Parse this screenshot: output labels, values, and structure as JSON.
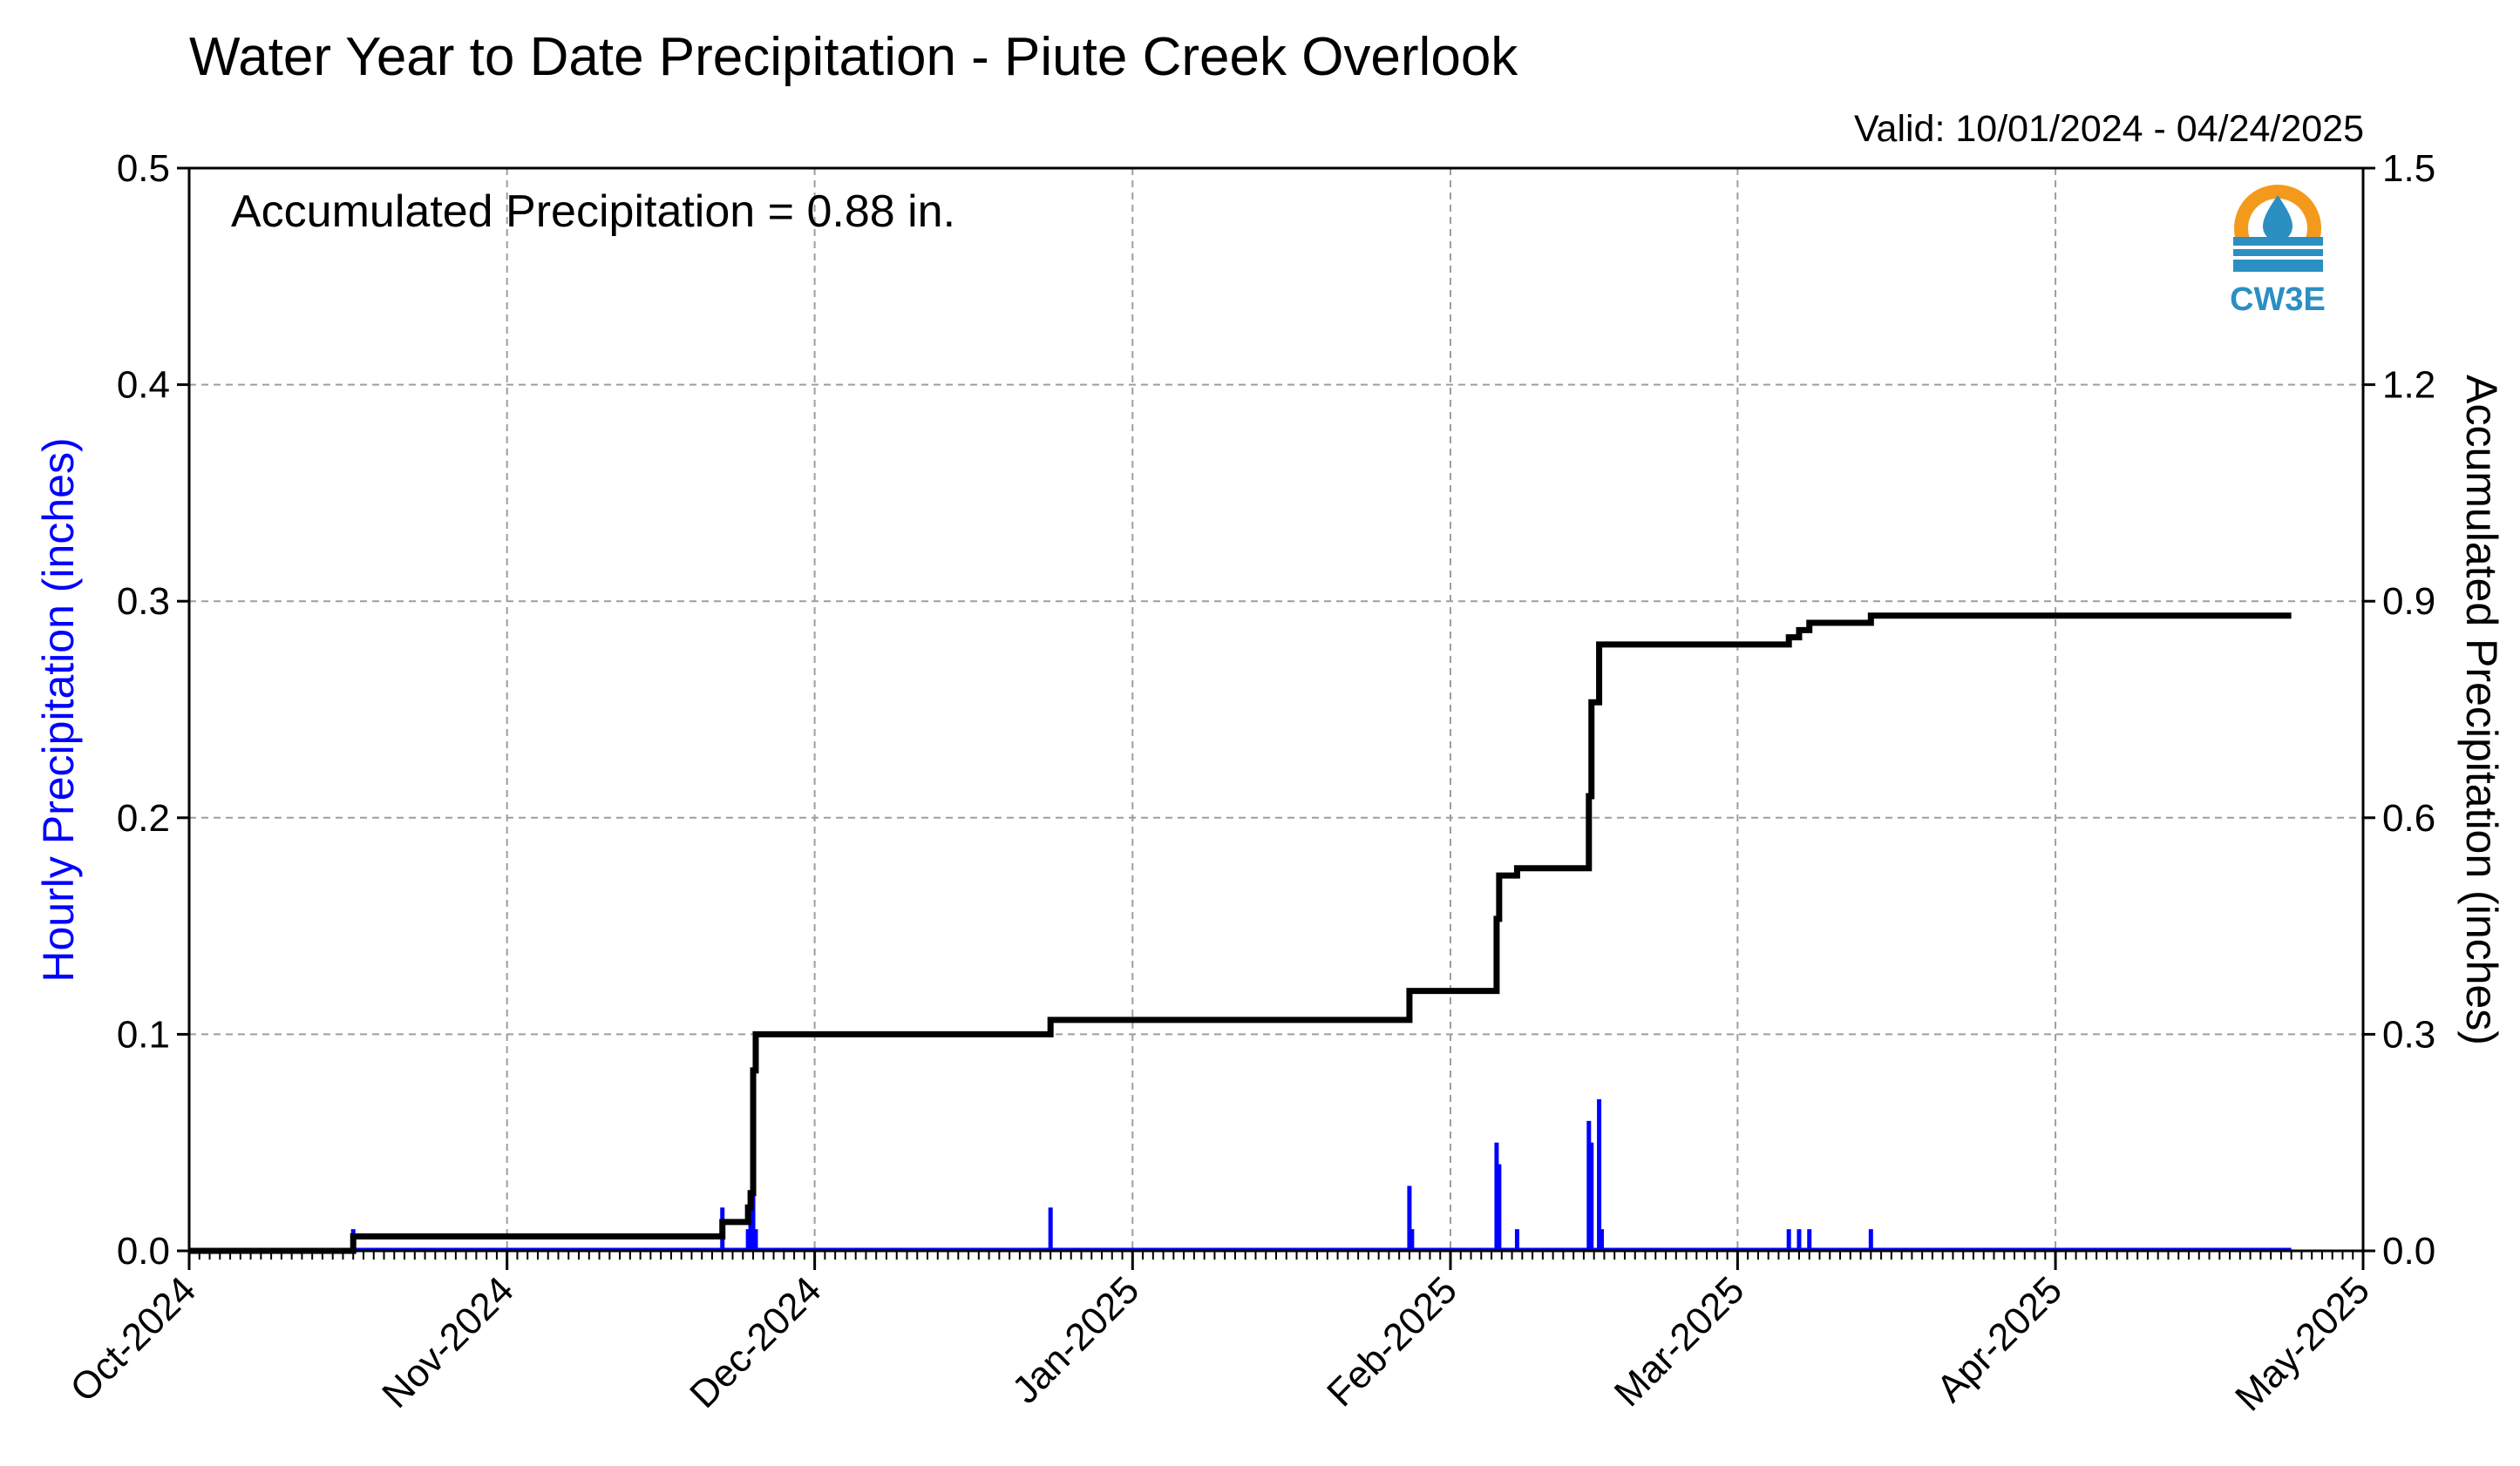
{
  "chart_data": {
    "type": "bar+line",
    "title": "Water Year to Date Precipitation - Piute Creek Overlook",
    "valid_text": "Valid: 10/01/2024 - 04/24/2025",
    "annotation": "Accumulated Precipitation = 0.88 in.",
    "logo_text": "CW3E",
    "ylabel_left": "Hourly Precipitation (inches)",
    "ylabel_right": "Accumulated Precipitation (inches)",
    "ylim_left": [
      0,
      0.5
    ],
    "ylim_right": [
      0,
      1.5
    ],
    "left_ticks": [
      "0.0",
      "0.1",
      "0.2",
      "0.3",
      "0.4",
      "0.5"
    ],
    "right_ticks": [
      "0.0",
      "0.3",
      "0.6",
      "0.9",
      "1.2",
      "1.5"
    ],
    "x_range": [
      "2024-10-01",
      "2025-05-01"
    ],
    "x_tick_labels": [
      "Oct-2024",
      "Nov-2024",
      "Dec-2024",
      "Jan-2025",
      "Feb-2025",
      "Mar-2025",
      "Apr-2025",
      "May-2025"
    ],
    "grid": true,
    "colors": {
      "hourly": "#0000ff",
      "accumulated": "#000000",
      "left_label": "#0000ff",
      "logo_blue": "#2b8fc2",
      "logo_orange": "#f39a1d"
    },
    "series": [
      {
        "name": "Hourly Precipitation",
        "type": "bar",
        "points": [
          [
            "2024-10-17T00",
            0.01
          ],
          [
            "2024-11-22T00",
            0.02
          ],
          [
            "2024-11-24T12",
            0.01
          ],
          [
            "2024-11-24T18",
            0.02
          ],
          [
            "2024-11-25T00",
            0.04
          ],
          [
            "2024-11-25T06",
            0.01
          ],
          [
            "2024-12-24T00",
            0.02
          ],
          [
            "2025-01-28T00",
            0.03
          ],
          [
            "2025-01-28T06",
            0.01
          ],
          [
            "2025-02-05T12",
            0.05
          ],
          [
            "2025-02-05T18",
            0.04
          ],
          [
            "2025-02-07T12",
            0.01
          ],
          [
            "2025-02-14T12",
            0.06
          ],
          [
            "2025-02-14T18",
            0.05
          ],
          [
            "2025-02-15T12",
            0.07
          ],
          [
            "2025-02-15T18",
            0.01
          ],
          [
            "2025-03-06T00",
            0.01
          ],
          [
            "2025-03-07T00",
            0.01
          ],
          [
            "2025-03-08T00",
            0.01
          ],
          [
            "2025-03-14T00",
            0.01
          ]
        ]
      },
      {
        "name": "Accumulated Precipitation",
        "type": "step-line",
        "points": [
          [
            "2024-10-01T00",
            0.0
          ],
          [
            "2024-10-17T00",
            0.02
          ],
          [
            "2024-11-22T00",
            0.04
          ],
          [
            "2024-11-24T12",
            0.06
          ],
          [
            "2024-11-24T18",
            0.08
          ],
          [
            "2024-11-25T00",
            0.25
          ],
          [
            "2024-11-25T06",
            0.3
          ],
          [
            "2024-12-24T00",
            0.32
          ],
          [
            "2025-01-28T00",
            0.36
          ],
          [
            "2025-02-05T12",
            0.46
          ],
          [
            "2025-02-05T18",
            0.52
          ],
          [
            "2025-02-07T12",
            0.53
          ],
          [
            "2025-02-14T12",
            0.63
          ],
          [
            "2025-02-14T18",
            0.76
          ],
          [
            "2025-02-15T12",
            0.84
          ],
          [
            "2025-03-06T00",
            0.85
          ],
          [
            "2025-03-07T00",
            0.86
          ],
          [
            "2025-03-08T00",
            0.87
          ],
          [
            "2025-03-14T00",
            0.88
          ],
          [
            "2025-04-24T00",
            0.88
          ]
        ]
      }
    ]
  }
}
